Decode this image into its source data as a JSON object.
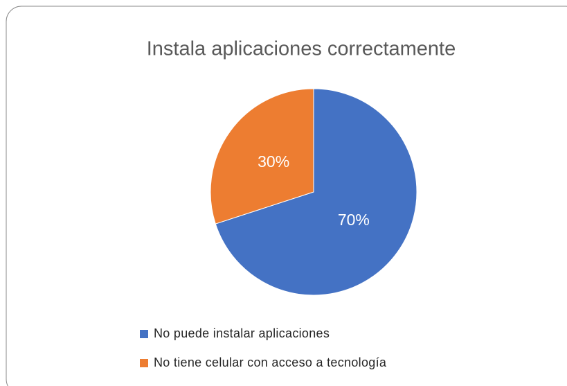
{
  "chart_data": {
    "type": "pie",
    "title": "Instala aplicaciones correctamente",
    "categories": [
      "No puede instalar aplicaciones",
      "No tiene celular con acceso a tecnología"
    ],
    "values": [
      70,
      30
    ],
    "value_labels": [
      "70%",
      "30%"
    ],
    "colors": [
      "#4472c4",
      "#ed7d31"
    ],
    "legend": "bottom"
  }
}
